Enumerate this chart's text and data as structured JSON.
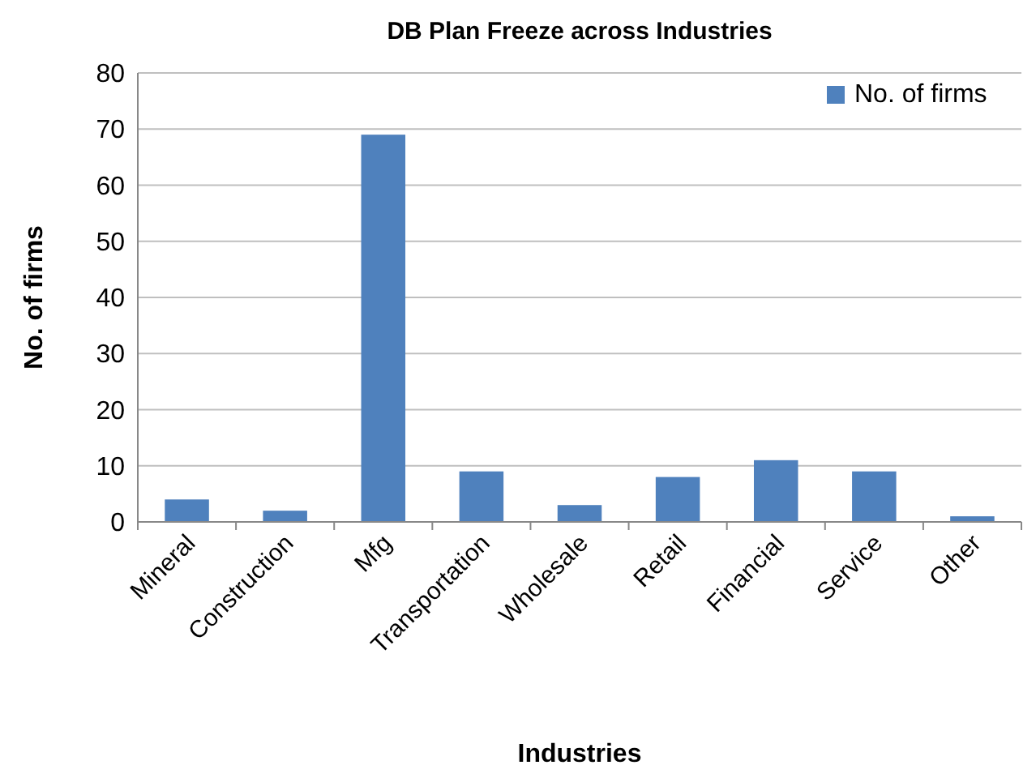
{
  "chart_data": {
    "type": "bar",
    "title": "DB Plan Freeze across Industries",
    "xlabel": "Industries",
    "ylabel": "No. of firms",
    "categories": [
      "Mineral",
      "Construction",
      "Mfg",
      "Transportation",
      "Wholesale",
      "Retail",
      "Financial",
      "Service",
      "Other"
    ],
    "series": [
      {
        "name": "No. of firms",
        "color": "#4f81bd",
        "values": [
          4,
          2,
          69,
          9,
          3,
          8,
          11,
          9,
          1
        ]
      }
    ],
    "ylim": [
      0,
      80
    ],
    "yticks": [
      0,
      10,
      20,
      30,
      40,
      50,
      60,
      70,
      80
    ],
    "grid": "y",
    "legend": "top right"
  }
}
